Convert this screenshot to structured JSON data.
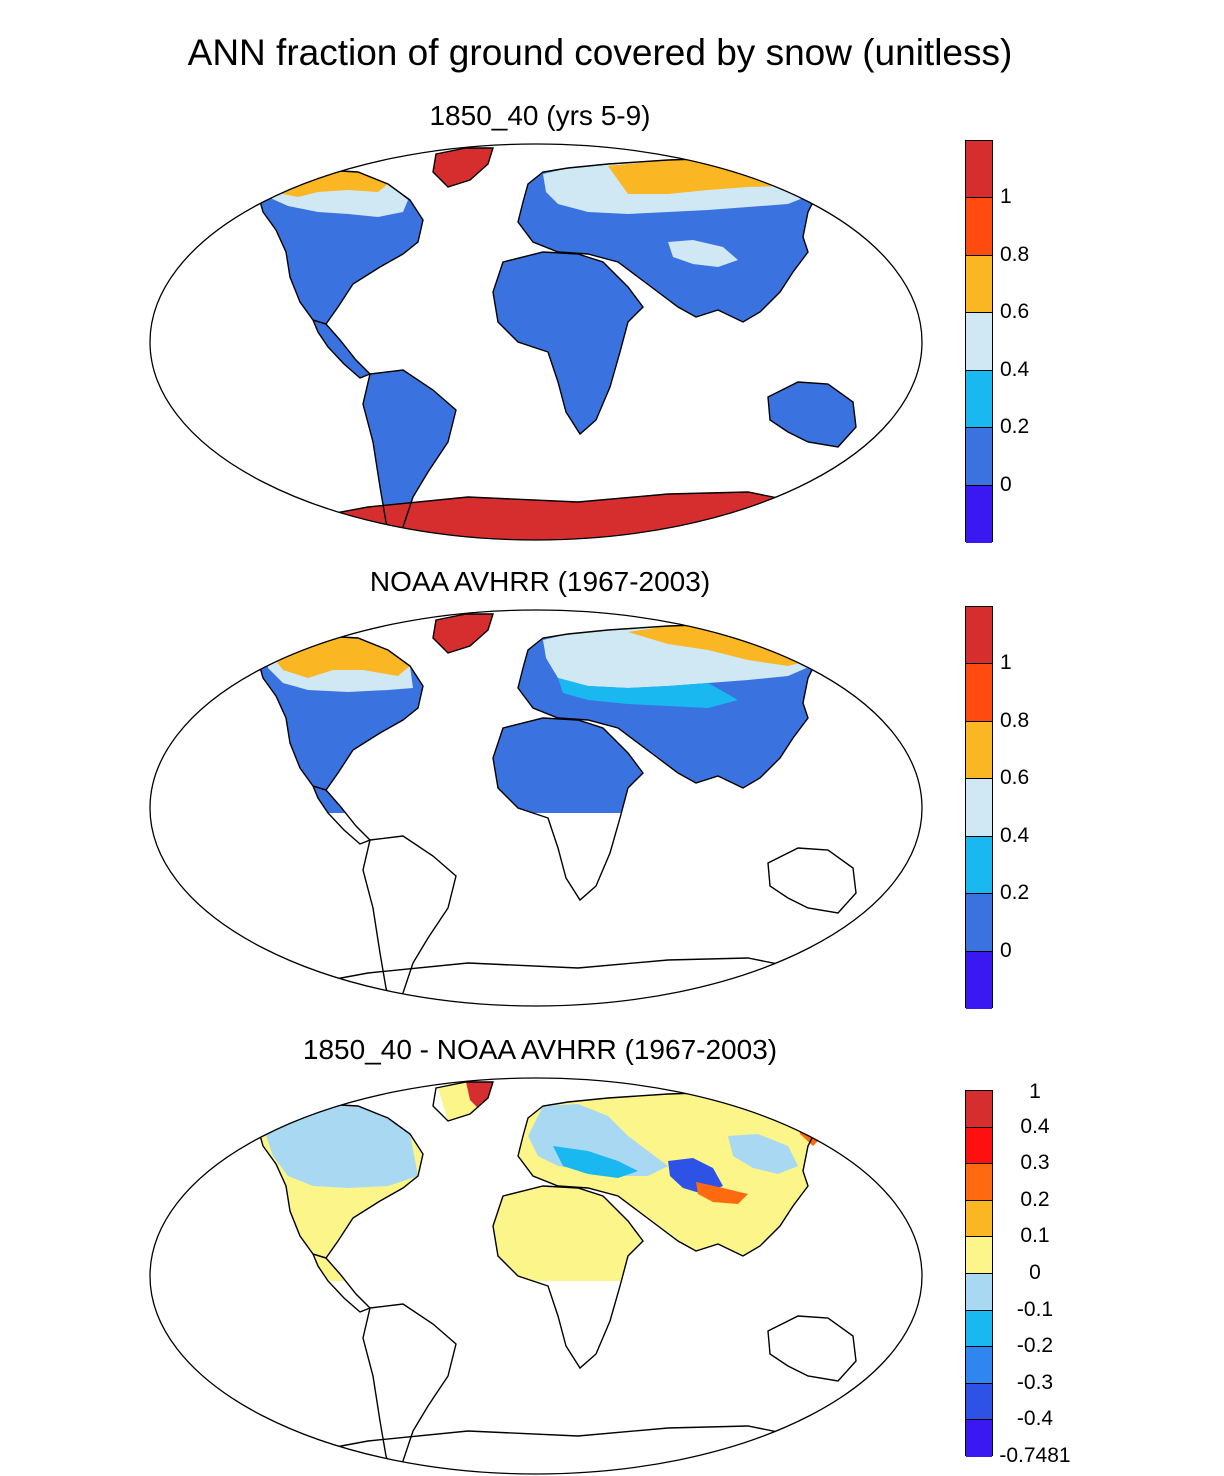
{
  "title": "ANN fraction of ground covered by snow (unitless)",
  "panels": [
    {
      "title": "1850_40 (yrs 5-9)",
      "coverage": "global",
      "colorbar": {
        "colors": [
          "#d62e2e",
          "#ff4a10",
          "#fbb624",
          "#cfe8f4",
          "#1ab8f0",
          "#3a73e0",
          "#3a18f2"
        ],
        "labels": [
          "1",
          "0.8",
          "0.6",
          "0.4",
          "0.2",
          "0"
        ]
      }
    },
    {
      "title": "NOAA AVHRR (1967-2003)",
      "coverage": "northern hemisphere only",
      "colorbar": {
        "colors": [
          "#d62e2e",
          "#ff4a10",
          "#fbb624",
          "#cfe8f4",
          "#1ab8f0",
          "#3a73e0",
          "#3a18f2"
        ],
        "labels": [
          "1",
          "0.8",
          "0.6",
          "0.4",
          "0.2",
          "0"
        ]
      }
    },
    {
      "title": "1850_40 - NOAA AVHRR (1967-2003)",
      "coverage": "northern hemisphere only",
      "colorbar": {
        "colors": [
          "#d62e2e",
          "#ff1010",
          "#ff6a10",
          "#fbb624",
          "#fbf58a",
          "#a8d8f2",
          "#1ab8f0",
          "#2f86f0",
          "#2f52e6",
          "#3a18f2"
        ],
        "labels": [
          "1",
          "0.4",
          "0.3",
          "0.2",
          "0.1",
          "0",
          "-0.1",
          "-0.2",
          "-0.3",
          "-0.4",
          "-0.7481"
        ]
      }
    }
  ],
  "colors": {
    "land_low": "#3a73e0",
    "snow_mid": "#cfe8f4",
    "snow_high": "#fbb624",
    "ice": "#d62e2e",
    "diff_zero": "#fbf58a",
    "diff_neg": "#a8d8f2"
  }
}
